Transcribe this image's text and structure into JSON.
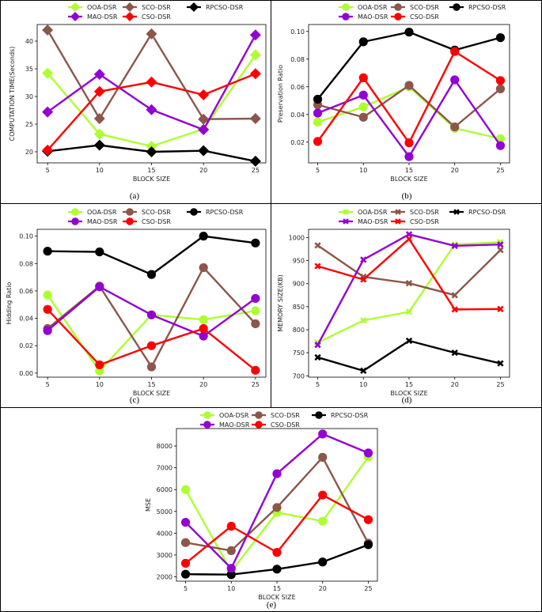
{
  "chart_data": [
    {
      "panel": "(a)",
      "type": "line",
      "xlabel": "BLOCK SIZE",
      "ylabel": "COMPUTATION TIME(Seconds)",
      "x": [
        5,
        10,
        15,
        20,
        25
      ],
      "xticks": [
        "5",
        "10",
        "15",
        "20",
        "25"
      ],
      "ylim": [
        18,
        43
      ],
      "yticks": [
        20,
        25,
        30,
        35,
        40
      ],
      "yticklabels": [
        "20",
        "25",
        "30",
        "35",
        "40"
      ],
      "marker": "diamond",
      "series": [
        {
          "name": "OOA-DSR",
          "color": "#adff2f",
          "values": [
            34.2,
            23.2,
            21.0,
            24.1,
            37.5
          ]
        },
        {
          "name": "SCO-DSR",
          "color": "#8c564b",
          "values": [
            42.0,
            26.0,
            41.3,
            25.9,
            26.0
          ]
        },
        {
          "name": "RPCSO-DSR",
          "color": "#000000",
          "values": [
            20.1,
            21.2,
            20.0,
            20.2,
            18.3
          ]
        },
        {
          "name": "MAO-DSR",
          "color": "#9400d3",
          "values": [
            27.2,
            34.0,
            27.6,
            24.0,
            41.1
          ]
        },
        {
          "name": "CSO-DSR",
          "color": "#ff0000",
          "values": [
            20.3,
            30.9,
            32.6,
            30.3,
            34.1
          ]
        }
      ]
    },
    {
      "panel": "(b)",
      "type": "line",
      "xlabel": "BLOCK SIZE",
      "ylabel": "Preservation Ratio",
      "x": [
        5,
        10,
        15,
        20,
        25
      ],
      "xticks": [
        "5",
        "10",
        "15",
        "20",
        "25"
      ],
      "ylim": [
        0.005,
        0.105
      ],
      "yticks": [
        0.02,
        0.04,
        0.06,
        0.08,
        0.1
      ],
      "yticklabels": [
        "0.02",
        "0.04",
        "0.06",
        "0.08",
        "0.10"
      ],
      "marker": "circle",
      "series": [
        {
          "name": "OOA-DSR",
          "color": "#adff2f",
          "values": [
            0.0345,
            0.0455,
            0.06,
            0.03,
            0.0225
          ]
        },
        {
          "name": "SCO-DSR",
          "color": "#8c564b",
          "values": [
            0.047,
            0.038,
            0.061,
            0.031,
            0.0585
          ]
        },
        {
          "name": "RPCSO-DSR",
          "color": "#000000",
          "values": [
            0.051,
            0.0925,
            0.0995,
            0.0865,
            0.0955
          ]
        },
        {
          "name": "MAO-DSR",
          "color": "#9400d3",
          "values": [
            0.041,
            0.054,
            0.0095,
            0.065,
            0.0175
          ]
        },
        {
          "name": "CSO-DSR",
          "color": "#ff0000",
          "values": [
            0.0205,
            0.0665,
            0.0195,
            0.0855,
            0.0645
          ]
        }
      ]
    },
    {
      "panel": "(c)",
      "type": "line",
      "xlabel": "BLOCK SIZE",
      "ylabel": "Hidding Ratio",
      "x": [
        5,
        10,
        15,
        20,
        25
      ],
      "xticks": [
        "5",
        "10",
        "15",
        "20",
        "25"
      ],
      "ylim": [
        -0.003,
        0.105
      ],
      "yticks": [
        0.0,
        0.02,
        0.04,
        0.06,
        0.08,
        0.1
      ],
      "yticklabels": [
        "0.00",
        "0.02",
        "0.04",
        "0.06",
        "0.08",
        "0.10"
      ],
      "marker": "circle",
      "series": [
        {
          "name": "OOA-DSR",
          "color": "#adff2f",
          "values": [
            0.057,
            0.0015,
            0.0425,
            0.039,
            0.0455
          ]
        },
        {
          "name": "SCO-DSR",
          "color": "#8c564b",
          "values": [
            0.0325,
            0.0635,
            0.0045,
            0.077,
            0.036
          ]
        },
        {
          "name": "RPCSO-DSR",
          "color": "#000000",
          "values": [
            0.089,
            0.0885,
            0.072,
            0.1,
            0.095
          ]
        },
        {
          "name": "MAO-DSR",
          "color": "#9400d3",
          "values": [
            0.031,
            0.063,
            0.0425,
            0.027,
            0.0545
          ]
        },
        {
          "name": "CSO-DSR",
          "color": "#ff0000",
          "values": [
            0.0465,
            0.006,
            0.02,
            0.0325,
            0.002
          ]
        }
      ]
    },
    {
      "panel": "(d)",
      "type": "line",
      "xlabel": "BLOCK SIZE",
      "ylabel": "MEMORY SIZE(KB)",
      "x": [
        5,
        10,
        15,
        20,
        25
      ],
      "xticks": [
        "5",
        "10",
        "15",
        "20",
        "25"
      ],
      "ylim": [
        697,
        1018
      ],
      "yticks": [
        700,
        750,
        800,
        850,
        900,
        950,
        1000
      ],
      "yticklabels": [
        "700",
        "750",
        "800",
        "850",
        "900",
        "950",
        "1000"
      ],
      "marker": "x",
      "series": [
        {
          "name": "OOA-DSR",
          "color": "#adff2f",
          "values": [
            772,
            820,
            839,
            985,
            990
          ]
        },
        {
          "name": "SCO-DSR",
          "color": "#8c564b",
          "values": [
            983,
            915,
            901,
            875,
            973
          ]
        },
        {
          "name": "RPCSO-DSR",
          "color": "#000000",
          "values": [
            740,
            711,
            776,
            750,
            727
          ]
        },
        {
          "name": "MAO-DSR",
          "color": "#9400d3",
          "values": [
            767,
            952,
            1007,
            982,
            985
          ]
        },
        {
          "name": "CSO-DSR",
          "color": "#ff0000",
          "values": [
            938,
            909,
            997,
            844,
            845
          ]
        }
      ]
    },
    {
      "panel": "(e)",
      "type": "line",
      "xlabel": "BLOCK SIZE",
      "ylabel": "MSE",
      "x": [
        5,
        10,
        15,
        20,
        25
      ],
      "xticks": [
        "5",
        "10",
        "15",
        "20",
        "25"
      ],
      "ylim": [
        1800,
        8800
      ],
      "yticks": [
        2000,
        3000,
        4000,
        5000,
        6000,
        7000,
        8000
      ],
      "yticklabels": [
        "2000",
        "3000",
        "4000",
        "5000",
        "6000",
        "7000",
        "8000"
      ],
      "marker": "circle",
      "series": [
        {
          "name": "OOA-DSR",
          "color": "#adff2f",
          "values": [
            6000,
            2250,
            4950,
            4550,
            7500
          ]
        },
        {
          "name": "SCO-DSR",
          "color": "#8c564b",
          "values": [
            3570,
            3200,
            5180,
            7480,
            3540
          ]
        },
        {
          "name": "RPCSO-DSR",
          "color": "#000000",
          "values": [
            2120,
            2100,
            2350,
            2680,
            3470
          ]
        },
        {
          "name": "MAO-DSR",
          "color": "#9400d3",
          "values": [
            4500,
            2390,
            6730,
            8550,
            7680
          ]
        },
        {
          "name": "CSO-DSR",
          "color": "#ff0000",
          "values": [
            2620,
            4320,
            3120,
            5750,
            4620
          ]
        }
      ]
    }
  ]
}
